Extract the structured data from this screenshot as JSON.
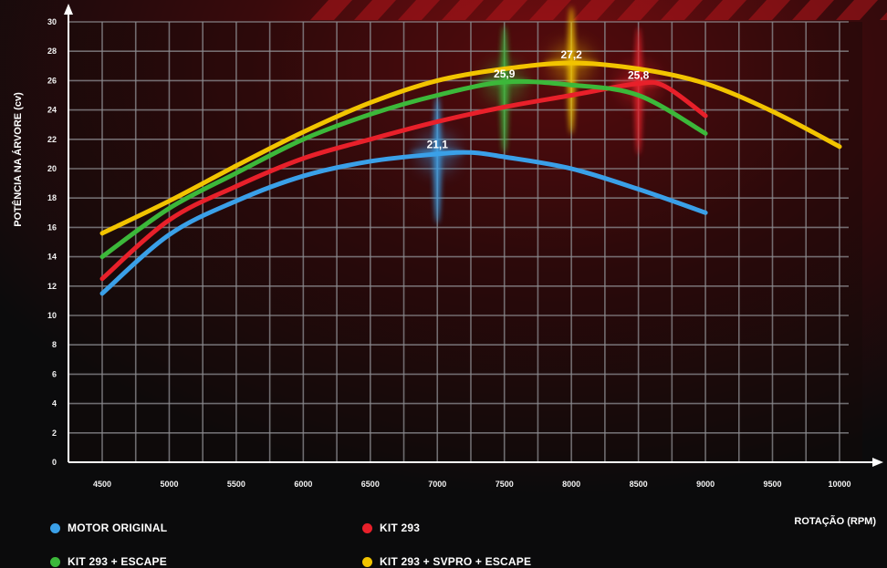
{
  "chart_data": {
    "type": "line",
    "xlabel": "ROTAÇÃO (RPM)",
    "ylabel": "POTÊNCIA NA ÁRVORE (cv)",
    "xlim": [
      4500,
      10000
    ],
    "ylim": [
      0,
      30
    ],
    "x_ticks": [
      4500,
      5000,
      5500,
      6000,
      6500,
      7000,
      7500,
      8000,
      8500,
      9000,
      9500,
      10000
    ],
    "y_ticks": [
      0,
      2,
      4,
      6,
      8,
      10,
      12,
      14,
      16,
      18,
      20,
      22,
      24,
      26,
      28,
      30
    ],
    "grid": true,
    "legend_position": "bottom",
    "series": [
      {
        "name": "MOTOR ORIGINAL",
        "color": "#3aa0e8",
        "x": [
          4500,
          5000,
          5500,
          6000,
          6500,
          7000,
          7250,
          7500,
          8000,
          8500,
          9000
        ],
        "y": [
          11.5,
          15.5,
          17.8,
          19.5,
          20.5,
          21.0,
          21.1,
          20.8,
          20.0,
          18.6,
          17.0
        ]
      },
      {
        "name": "KIT 293",
        "color": "#e8202a",
        "x": [
          4500,
          5000,
          5500,
          6000,
          6500,
          7000,
          7500,
          8000,
          8500,
          8700,
          9000
        ],
        "y": [
          12.5,
          16.5,
          18.8,
          20.7,
          22.0,
          23.2,
          24.2,
          25.0,
          25.8,
          25.6,
          23.6
        ]
      },
      {
        "name": "KIT 293 + ESCAPE",
        "color": "#3cb83a",
        "x": [
          4500,
          5000,
          5500,
          6000,
          6500,
          7000,
          7500,
          8000,
          8500,
          9000
        ],
        "y": [
          14.0,
          17.3,
          19.7,
          22.0,
          23.7,
          25.0,
          25.9,
          25.7,
          25.0,
          22.4
        ]
      },
      {
        "name": "KIT 293 + SVPRO + ESCAPE",
        "color": "#f2c400",
        "x": [
          4500,
          5000,
          5500,
          6000,
          6500,
          7000,
          7500,
          8000,
          8500,
          9000,
          9500,
          10000
        ],
        "y": [
          15.6,
          17.8,
          20.2,
          22.5,
          24.5,
          26.0,
          26.8,
          27.2,
          26.8,
          25.8,
          23.9,
          21.5
        ]
      }
    ],
    "annotations": [
      {
        "text": "21,1",
        "x": 7000,
        "y": 21.1,
        "color": "#3aa0e8"
      },
      {
        "text": "25,9",
        "x": 7500,
        "y": 25.9,
        "color": "#3cb83a"
      },
      {
        "text": "27,2",
        "x": 8000,
        "y": 27.2,
        "color": "#f2c400"
      },
      {
        "text": "25,8",
        "x": 8500,
        "y": 25.8,
        "color": "#e8202a"
      }
    ]
  },
  "legend": {
    "items": [
      {
        "label": "MOTOR ORIGINAL",
        "color": "#3aa0e8"
      },
      {
        "label": "KIT 293",
        "color": "#e8202a"
      },
      {
        "label": "KIT 293 + ESCAPE",
        "color": "#3cb83a"
      },
      {
        "label": "KIT 293 + SVPRO + ESCAPE",
        "color": "#f2c400"
      }
    ]
  }
}
